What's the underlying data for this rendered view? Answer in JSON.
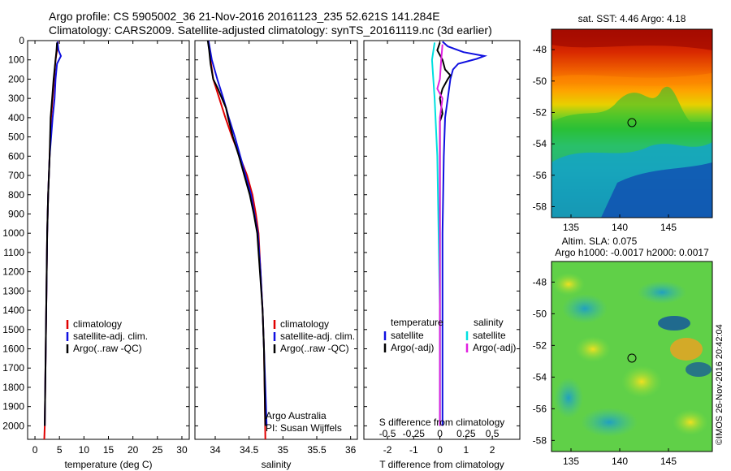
{
  "header": {
    "line1": "Argo profile: CS 5905002_36 21-Nov-2016 20161123_235 52.621S 141.284E",
    "line2": "Climatology: CARS2009. Satellite-adjusted climatology: synTS_20161119.nc (3d earlier)"
  },
  "colors": {
    "climatology": "#e00000",
    "satellite": "#1010e0",
    "argo": "#000000",
    "sat_diff": "#00e0e0",
    "argo_s_diff": "#e020e0"
  },
  "chart_data": [
    {
      "type": "line",
      "xlabel": "temperature (deg C)",
      "ylabel": "",
      "xlim": [
        -1.5,
        31.5
      ],
      "ylim": [
        2070,
        0
      ],
      "xticks": [
        0,
        5,
        10,
        15,
        20,
        25,
        30
      ],
      "yticks": [
        0,
        100,
        200,
        300,
        400,
        500,
        600,
        700,
        800,
        900,
        1000,
        1100,
        1200,
        1300,
        1400,
        1500,
        1600,
        1700,
        1800,
        1900,
        2000
      ],
      "legend": [
        "climatology",
        "satellite-adj. clim.",
        "Argo(..raw -QC)"
      ],
      "series": [
        {
          "name": "climatology",
          "color": "#e00000",
          "points": [
            [
              4.7,
              5
            ],
            [
              4.5,
              50
            ],
            [
              4.2,
              100
            ],
            [
              3.9,
              200
            ],
            [
              3.6,
              300
            ],
            [
              3.3,
              400
            ],
            [
              3.0,
              600
            ],
            [
              2.7,
              800
            ],
            [
              2.5,
              1000
            ],
            [
              2.3,
              1400
            ],
            [
              2.1,
              1800
            ],
            [
              2.0,
              2000
            ],
            [
              1.9,
              2070
            ]
          ]
        },
        {
          "name": "satellite-adj. clim.",
          "color": "#1010e0",
          "points": [
            [
              4.6,
              5
            ],
            [
              4.8,
              50
            ],
            [
              5.3,
              80
            ],
            [
              4.5,
              120
            ],
            [
              4.2,
              200
            ],
            [
              4.0,
              300
            ],
            [
              3.6,
              400
            ],
            [
              3.0,
              600
            ],
            [
              2.7,
              800
            ],
            [
              2.5,
              1000
            ],
            [
              2.3,
              1400
            ],
            [
              2.1,
              1800
            ],
            [
              2.0,
              2000
            ]
          ]
        },
        {
          "name": "Argo(..raw -QC)",
          "color": "#000000",
          "points": [
            [
              4.5,
              10
            ],
            [
              4.4,
              50
            ],
            [
              4.2,
              100
            ],
            [
              3.8,
              200
            ],
            [
              3.5,
              300
            ],
            [
              3.2,
              400
            ],
            [
              3.0,
              600
            ],
            [
              2.7,
              800
            ],
            [
              2.5,
              1000
            ],
            [
              2.3,
              1400
            ],
            [
              2.1,
              1800
            ],
            [
              2.0,
              2000
            ]
          ]
        }
      ]
    },
    {
      "type": "line",
      "xlabel": "salinity",
      "ylabel": "",
      "xlim": [
        33.7,
        36.1
      ],
      "ylim": [
        2070,
        0
      ],
      "xticks": [
        34,
        34.5,
        35,
        35.5,
        36
      ],
      "legend": [
        "climatology",
        "satellite-adj. clim.",
        "Argo(..raw -QC)"
      ],
      "annotation": [
        "Argo Australia",
        "PI: Susan Wijffels"
      ],
      "series": [
        {
          "name": "climatology",
          "color": "#e00000",
          "points": [
            [
              33.9,
              0
            ],
            [
              33.93,
              100
            ],
            [
              33.97,
              200
            ],
            [
              34.06,
              300
            ],
            [
              34.15,
              400
            ],
            [
              34.25,
              500
            ],
            [
              34.36,
              600
            ],
            [
              34.47,
              700
            ],
            [
              34.55,
              800
            ],
            [
              34.6,
              900
            ],
            [
              34.64,
              1000
            ],
            [
              34.67,
              1200
            ],
            [
              34.7,
              1400
            ],
            [
              34.72,
              1600
            ],
            [
              34.73,
              1800
            ],
            [
              34.74,
              2070
            ]
          ]
        },
        {
          "name": "satellite-adj. clim.",
          "color": "#1010e0",
          "points": [
            [
              33.9,
              0
            ],
            [
              33.95,
              100
            ],
            [
              34.03,
              200
            ],
            [
              34.12,
              300
            ],
            [
              34.2,
              400
            ],
            [
              34.29,
              500
            ],
            [
              34.37,
              600
            ],
            [
              34.45,
              700
            ],
            [
              34.53,
              800
            ],
            [
              34.58,
              900
            ],
            [
              34.63,
              1000
            ],
            [
              34.67,
              1200
            ],
            [
              34.7,
              1400
            ],
            [
              34.72,
              1600
            ],
            [
              34.74,
              1800
            ],
            [
              34.76,
              2000
            ]
          ]
        },
        {
          "name": "Argo(..raw -QC)",
          "color": "#000000",
          "points": [
            [
              33.89,
              0
            ],
            [
              33.91,
              50
            ],
            [
              33.93,
              120
            ],
            [
              33.97,
              200
            ],
            [
              34.04,
              250
            ],
            [
              34.1,
              300
            ],
            [
              34.16,
              350
            ],
            [
              34.19,
              400
            ],
            [
              34.26,
              500
            ],
            [
              34.35,
              600
            ],
            [
              34.43,
              700
            ],
            [
              34.51,
              800
            ],
            [
              34.57,
              900
            ],
            [
              34.62,
              1000
            ],
            [
              34.66,
              1200
            ],
            [
              34.7,
              1400
            ],
            [
              34.72,
              1600
            ],
            [
              34.73,
              1800
            ],
            [
              34.74,
              2000
            ]
          ]
        }
      ]
    },
    {
      "type": "line",
      "xlabel": "T difference from climatology",
      "x2label": "S difference from climatology",
      "xlim": [
        -2.9,
        3.05
      ],
      "ylim": [
        2070,
        0
      ],
      "xticks": [
        -2,
        -1,
        0,
        1,
        2
      ],
      "x2ticks": [
        "-0.5",
        "-0.25",
        "0",
        "0.25",
        "0.5"
      ],
      "x2tick_positions": [
        -2,
        -1,
        0,
        1,
        2
      ],
      "legend_left_title": "temperature",
      "legend_right_title": "salinity",
      "legend_left": [
        "satellite",
        "Argo(-adj)"
      ],
      "legend_right": [
        "satellite",
        "Argo(-adj)"
      ],
      "series": [
        {
          "name": "temperature satellite",
          "color": "#1010e0",
          "points": [
            [
              0.1,
              5
            ],
            [
              0.3,
              30
            ],
            [
              0.9,
              60
            ],
            [
              1.7,
              80
            ],
            [
              1.4,
              95
            ],
            [
              0.7,
              120
            ],
            [
              0.5,
              150
            ],
            [
              0.4,
              200
            ],
            [
              0.3,
              300
            ],
            [
              0.2,
              400
            ],
            [
              0.15,
              600
            ],
            [
              0.1,
              1000
            ],
            [
              0.1,
              1500
            ],
            [
              0.1,
              2000
            ]
          ]
        },
        {
          "name": "temperature Argo(-adj)",
          "color": "#000000",
          "points": [
            [
              0.0,
              10
            ],
            [
              -0.1,
              50
            ],
            [
              0.1,
              100
            ],
            [
              0.2,
              150
            ],
            [
              0.4,
              180
            ],
            [
              0.3,
              200
            ],
            [
              0.1,
              250
            ],
            [
              0.0,
              300
            ],
            [
              0.1,
              380
            ],
            [
              0.0,
              420
            ],
            [
              0.0,
              500
            ],
            [
              0.0,
              1000
            ],
            [
              0.0,
              1500
            ],
            [
              0.0,
              2000
            ]
          ]
        },
        {
          "name": "salinity satellite",
          "color": "#00e0e0",
          "points": [
            [
              -0.2,
              10
            ],
            [
              -0.3,
              100
            ],
            [
              -0.2,
              300
            ],
            [
              -0.1,
              600
            ],
            [
              -0.05,
              1000
            ],
            [
              0.0,
              1400
            ],
            [
              0.0,
              1800
            ],
            [
              0.0,
              2000
            ]
          ]
        },
        {
          "name": "salinity Argo(-adj)",
          "color": "#e020e0",
          "points": [
            [
              0.1,
              20
            ],
            [
              0.05,
              100
            ],
            [
              0.0,
              200
            ],
            [
              -0.1,
              250
            ],
            [
              0.1,
              300
            ],
            [
              0.0,
              400
            ],
            [
              0.0,
              600
            ],
            [
              0.0,
              1000
            ],
            [
              0.0,
              1500
            ],
            [
              0.0,
              2000
            ]
          ]
        }
      ]
    },
    {
      "type": "heatmap",
      "title": "sat. SST: 4.46 Argo: 4.18",
      "xticks": [
        135,
        140,
        145
      ],
      "yticks": [
        -48,
        -50,
        -52,
        -54,
        -56,
        -58
      ],
      "xlim": [
        133,
        149.5
      ],
      "ylim": [
        -58.7,
        -46.7
      ],
      "marker": [
        141.284,
        -52.621
      ]
    },
    {
      "type": "heatmap",
      "title": "Altim. SLA: 0.075",
      "subtitle": "Argo h1000: -0.0017 h2000: 0.0017",
      "xticks": [
        135,
        140,
        145
      ],
      "yticks": [
        -48,
        -50,
        -52,
        -54,
        -56,
        -58
      ],
      "xlim": [
        133,
        149.5
      ],
      "ylim": [
        -58.7,
        -46.7
      ],
      "marker": [
        141.284,
        -52.621
      ]
    }
  ],
  "footer": {
    "vertical_stamp": "©IMOS 26-Nov-2016 20:42:04"
  }
}
